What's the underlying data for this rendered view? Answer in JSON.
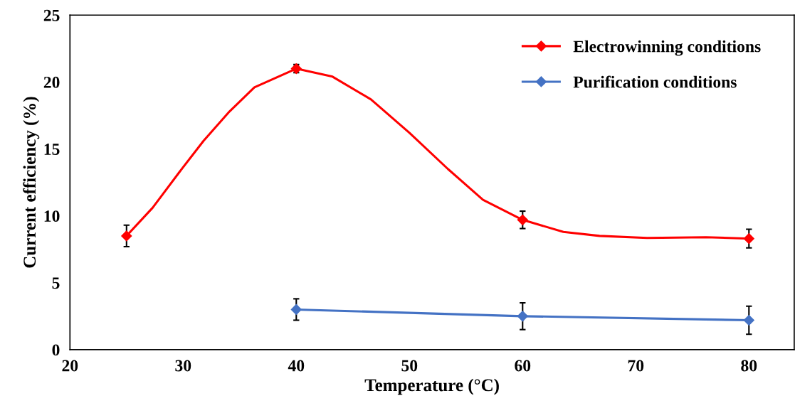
{
  "chart_data": {
    "type": "line",
    "xlabel": "Temperature (°C)",
    "ylabel": "Current efficiency (%)",
    "xlim": [
      20,
      84
    ],
    "xticks": [
      20,
      30,
      40,
      50,
      60,
      70,
      80
    ],
    "ylim": [
      0,
      25
    ],
    "yticks": [
      0,
      5,
      10,
      15,
      20,
      25
    ],
    "series": [
      {
        "type": "line",
        "color": "#ff0000",
        "marker": "none",
        "x": [
          25,
          27.3,
          29.7,
          31.8,
          34.1,
          36.3,
          40,
          43.2,
          46.6,
          50,
          53.4,
          56.5,
          60,
          63.6,
          66.8,
          71,
          76.2,
          80
        ],
        "values": [
          8.5,
          10.6,
          13.3,
          15.6,
          17.8,
          19.6,
          21.0,
          20.4,
          18.7,
          16.2,
          13.5,
          11.2,
          9.7,
          8.8,
          8.5,
          8.35,
          8.4,
          8.3
        ]
      },
      {
        "type": "scatter",
        "name": "Electrowinning conditions",
        "color": "#ff0000",
        "x": [
          25,
          40,
          60,
          80
        ],
        "values": [
          8.5,
          21.0,
          9.7,
          8.3
        ],
        "errors": [
          0.8,
          0.3,
          0.65,
          0.7
        ]
      },
      {
        "name": "Purification conditions",
        "color": "#4472c4",
        "x": [
          40,
          60,
          80
        ],
        "values": [
          3.0,
          2.5,
          2.2
        ],
        "errors": [
          0.8,
          1.0,
          1.05
        ]
      }
    ],
    "marker": "diamond",
    "grid": false,
    "legend": "top right"
  }
}
